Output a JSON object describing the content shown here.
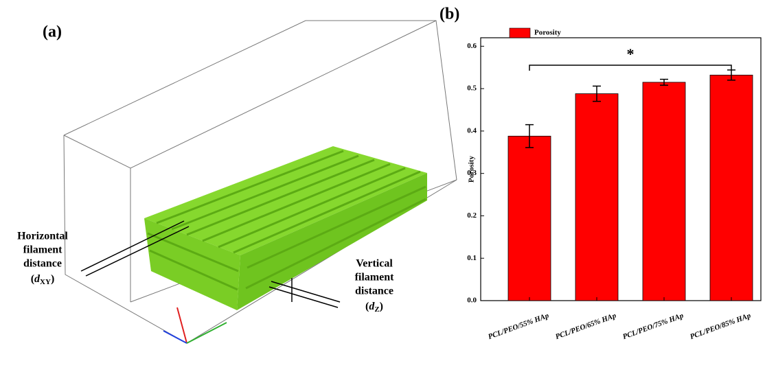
{
  "panel_a": {
    "label": "(a)",
    "horizontal": {
      "lines": [
        "Horizontal",
        "filament",
        "distance"
      ],
      "symbol": [
        "(",
        "d",
        "XY",
        ")"
      ]
    },
    "vertical": {
      "lines": [
        "Vertical",
        "filament",
        "distance"
      ],
      "symbol": [
        "(",
        "d",
        "Z",
        ")"
      ]
    }
  },
  "chart_data": {
    "type": "bar",
    "panel_label": "(b)",
    "y_label": "Porosity",
    "categories": [
      "PCL/PEO/55% HAp",
      "PCL/PEO/65% HAp",
      "PCL/PEO/75% HAp",
      "PCL/PEO/85% HAp"
    ],
    "series": [
      {
        "name": "Porosity",
        "color": "#ff0000",
        "values": [
          0.388,
          0.488,
          0.515,
          0.532
        ],
        "errors": [
          0.027,
          0.018,
          0.007,
          0.012
        ]
      }
    ],
    "ylim": [
      0,
      0.62
    ],
    "yticks": [
      {
        "value": 0,
        "label": "0.0"
      },
      0.1,
      0.2,
      0.3,
      0.4,
      0.5,
      0.6
    ],
    "annotation": "*",
    "legend": "upper left"
  }
}
